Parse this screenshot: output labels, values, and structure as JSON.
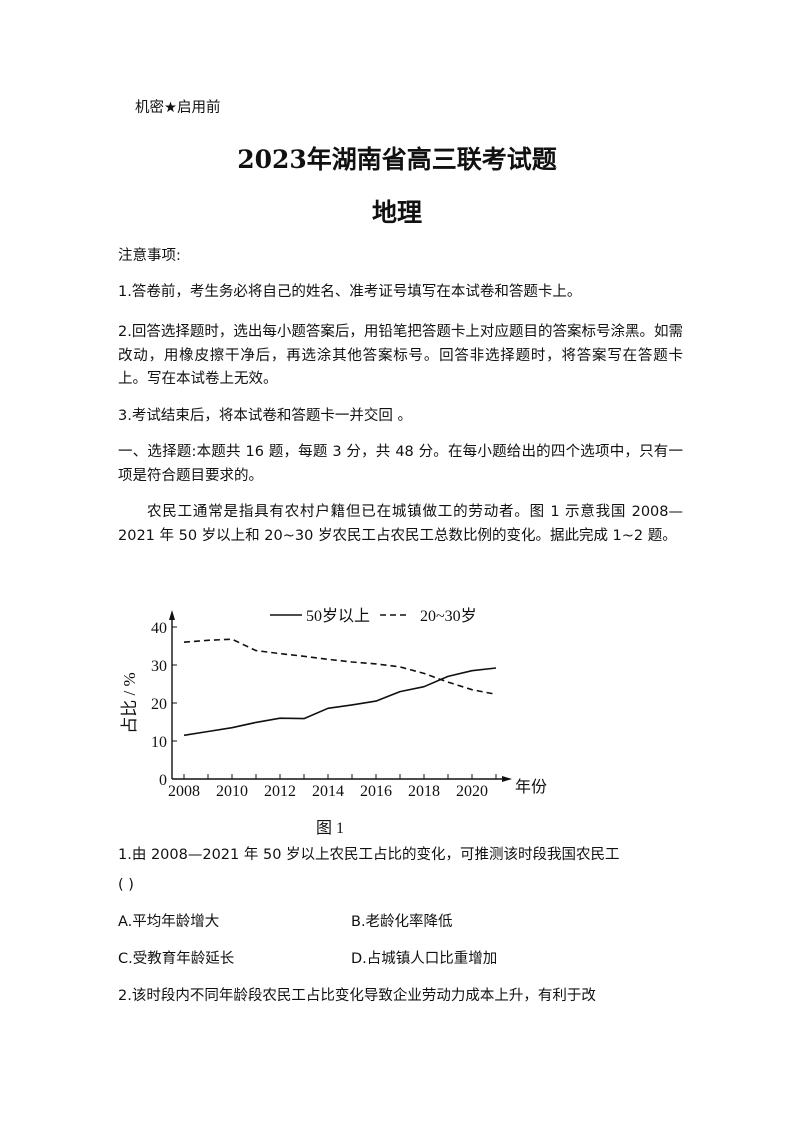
{
  "header": {
    "confidential": "机密★启用前",
    "title": "2023年湖南省高三联考试题",
    "subject": "地理"
  },
  "notes": {
    "heading": "注意事项:",
    "items": [
      "1.答卷前，考生务必将自己的姓名、准考证号填写在本试卷和答题卡上。",
      "2.回答选择题时，选出每小题答案后，用铅笔把答题卡上对应题目的答案标号涂黑。如需改动，用橡皮擦干净后，再选涂其他答案标号。回答非选择题时，将答案写在答题卡上。写在本试卷上无效。",
      "3.考试结束后，将本试卷和答题卡一并交回 。"
    ]
  },
  "section": {
    "intro": "一、选择题:本题共 16 题，每题 3 分，共 48 分。在每小题给出的四个选项中，只有一项是符合题目要求的。"
  },
  "material": "农民工通常是指具有农村户籍但已在城镇做工的劳动者。图 1 示意我国 2008— 2021 年 50 岁以上和 20~30 岁农民工占农民工总数比例的变化。据此完成 1~2 题。",
  "chart_data": {
    "type": "line",
    "caption": "图 1",
    "xlabel": "年份",
    "ylabel": "占比 / %",
    "x": [
      2008,
      2009,
      2010,
      2011,
      2012,
      2013,
      2014,
      2015,
      2016,
      2017,
      2018,
      2019,
      2020,
      2021
    ],
    "x_tick_labels": [
      "2008",
      "2010",
      "2012",
      "2014",
      "2016",
      "2018",
      "2020"
    ],
    "y_tick_labels": [
      "0",
      "10",
      "20",
      "30",
      "40"
    ],
    "ylim": [
      0,
      40
    ],
    "legend_position": "top",
    "series": [
      {
        "name": "50岁以上",
        "style": "solid",
        "values": [
          11.5,
          12.5,
          13.5,
          14.9,
          16.0,
          15.9,
          18.6,
          19.5,
          20.5,
          23.0,
          24.3,
          27.0,
          28.5,
          29.2
        ]
      },
      {
        "name": "20~30岁",
        "style": "dashed",
        "values": [
          36.0,
          36.5,
          36.8,
          33.8,
          33.0,
          32.3,
          31.5,
          30.8,
          30.3,
          29.5,
          27.8,
          25.5,
          23.5,
          22.3
        ]
      }
    ]
  },
  "questions": [
    {
      "stem": "1.由 2008—2021 年 50 岁以上农民工占比的变化，可推测该时段我国农民工",
      "blank": "(     )",
      "options": [
        "A.平均年龄增大",
        "B.老龄化率降低",
        "C.受教育年龄延长",
        "D.占城镇人口比重增加"
      ]
    },
    {
      "stem": "2.该时段内不同年龄段农民工占比变化导致企业劳动力成本上升，有利于改"
    }
  ]
}
